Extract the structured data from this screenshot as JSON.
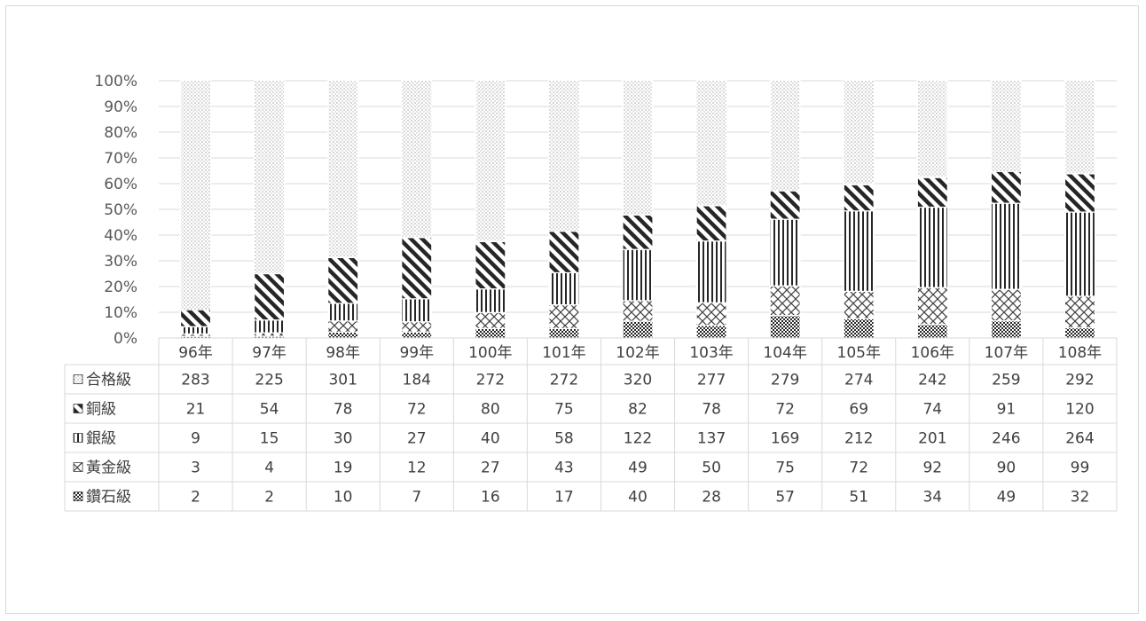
{
  "chart_data": {
    "type": "bar",
    "stacked": "percent",
    "categories": [
      "96年",
      "97年",
      "98年",
      "99年",
      "100年",
      "101年",
      "102年",
      "103年",
      "104年",
      "105年",
      "106年",
      "107年",
      "108年"
    ],
    "series": [
      {
        "name": "鑽石級",
        "pattern": "checker",
        "values": [
          2,
          2,
          10,
          7,
          16,
          17,
          40,
          28,
          57,
          51,
          34,
          49,
          32
        ]
      },
      {
        "name": "黃金級",
        "pattern": "cross-diagonal",
        "values": [
          3,
          4,
          19,
          12,
          27,
          43,
          49,
          50,
          75,
          72,
          92,
          90,
          99
        ]
      },
      {
        "name": "銀級",
        "pattern": "vertical-lines",
        "values": [
          9,
          15,
          30,
          27,
          40,
          58,
          122,
          137,
          169,
          212,
          201,
          246,
          264
        ]
      },
      {
        "name": "銅級",
        "pattern": "diagonal-lines",
        "values": [
          21,
          54,
          78,
          72,
          80,
          75,
          82,
          78,
          72,
          69,
          74,
          91,
          120
        ]
      },
      {
        "name": "合格級",
        "pattern": "dots",
        "values": [
          283,
          225,
          301,
          184,
          272,
          272,
          320,
          277,
          279,
          274,
          242,
          259,
          292
        ]
      }
    ],
    "table_row_order": [
      "合格級",
      "銅級",
      "銀級",
      "黃金級",
      "鑽石級"
    ],
    "yticks": [
      "0%",
      "10%",
      "20%",
      "30%",
      "40%",
      "50%",
      "60%",
      "70%",
      "80%",
      "90%",
      "100%"
    ],
    "ylim": [
      0,
      100
    ],
    "grid": true,
    "data_table": true
  }
}
